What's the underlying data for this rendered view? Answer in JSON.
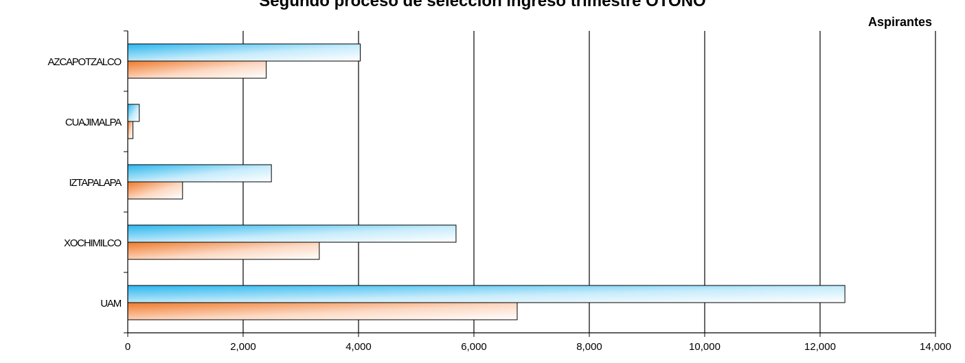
{
  "chart_data": {
    "type": "bar",
    "orientation": "horizontal",
    "title": "Segundo proceso de selección ingreso trimestre OTOÑO",
    "unit_label": "Aspirantes",
    "categories": [
      "AZCAPOTZALCO",
      "CUAJIMALPA",
      "IZTAPALAPA",
      "XOCHIMILCO",
      "UAM"
    ],
    "series": [
      {
        "values": [
          4030,
          200,
          2490,
          5690,
          12430
        ],
        "color": "#33bbee"
      },
      {
        "values": [
          2400,
          90,
          950,
          3320,
          6750
        ],
        "color": "#f08030"
      }
    ],
    "xlim": [
      0,
      14000
    ],
    "xticks": [
      "0",
      "2,000",
      "4,000",
      "6,000",
      "8,000",
      "10,000",
      "12,000",
      "14,000"
    ],
    "grid": true,
    "legend": "none"
  }
}
